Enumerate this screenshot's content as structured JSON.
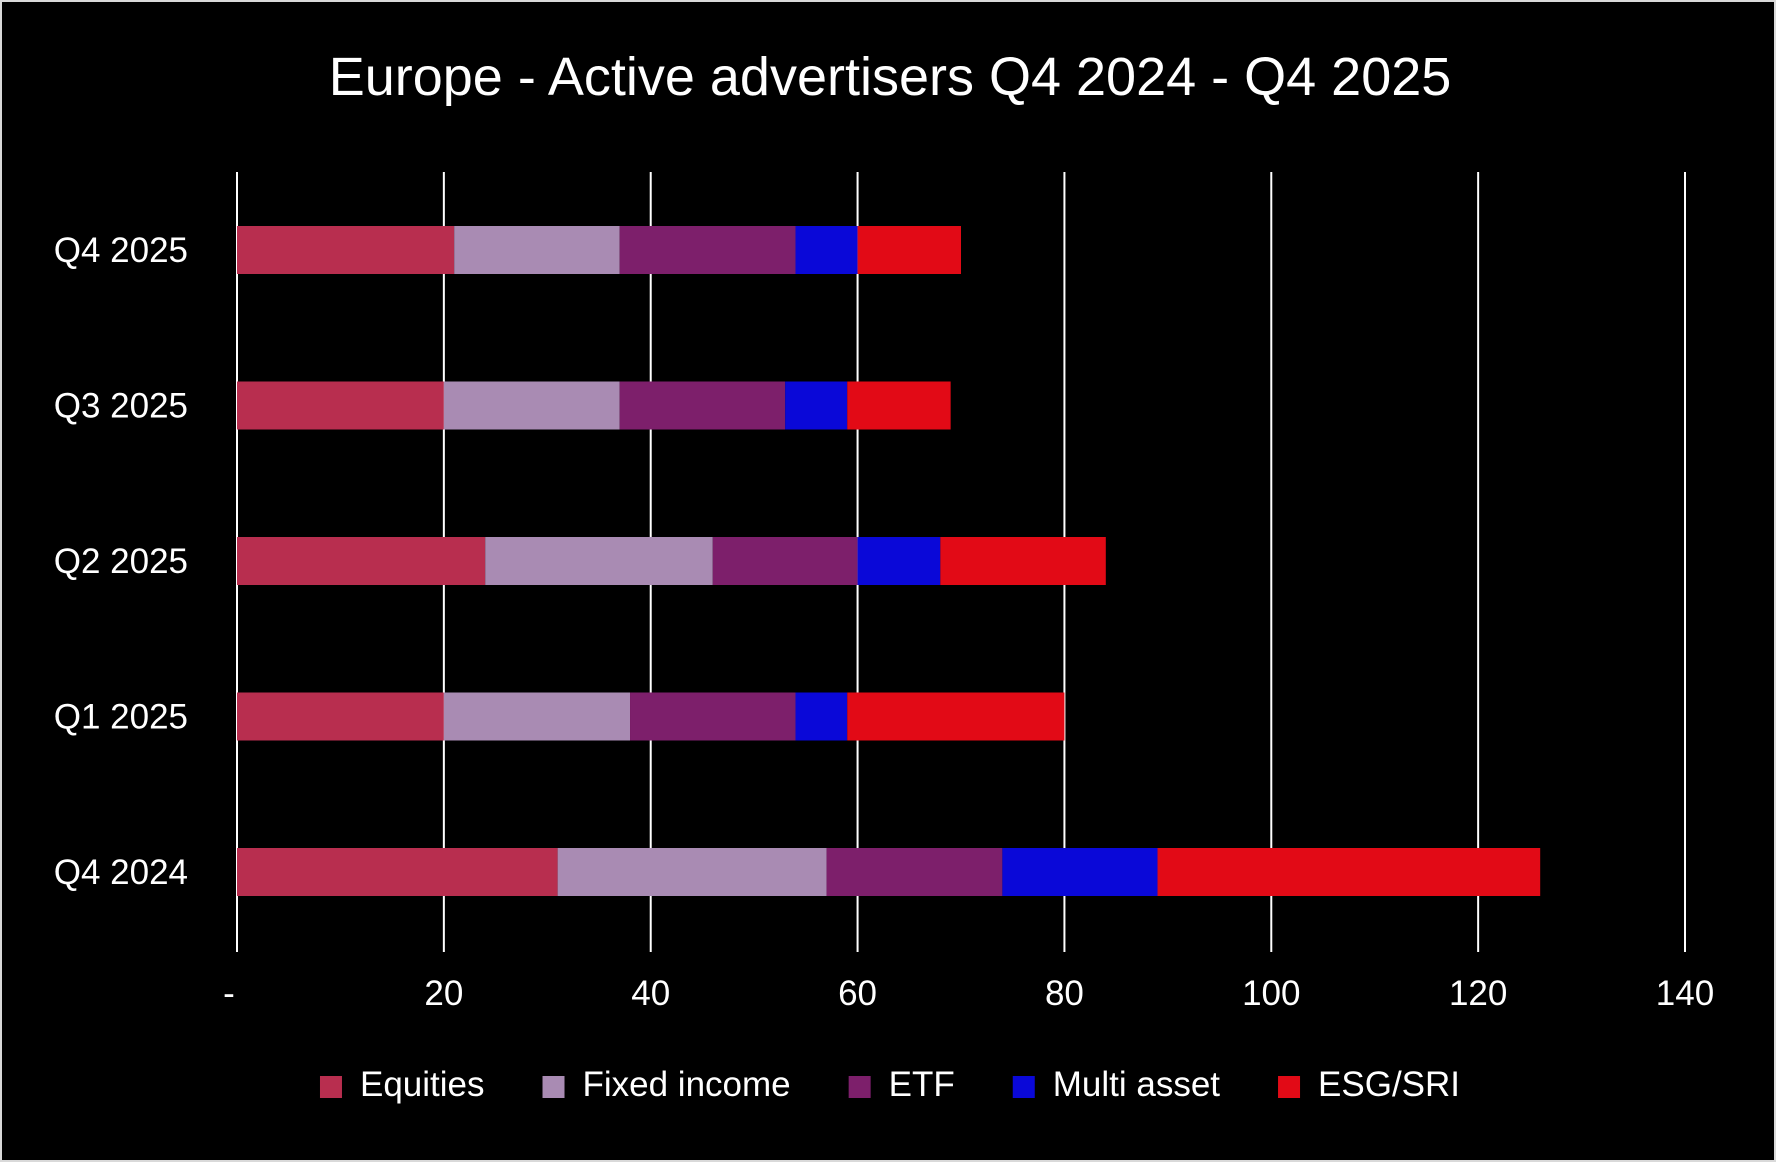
{
  "chart_data": {
    "type": "bar",
    "orientation": "horizontal",
    "stacked": true,
    "title": "Europe - Active advertisers Q4 2024 - Q4 2025",
    "categories": [
      "Q4 2025",
      "Q3 2025",
      "Q2 2025",
      "Q1 2025",
      "Q4 2024"
    ],
    "series": [
      {
        "name": "Equities",
        "color": "#b82e4f",
        "values": [
          21,
          20,
          24,
          20,
          31
        ]
      },
      {
        "name": "Fixed income",
        "color": "#a98bb3",
        "values": [
          16,
          17,
          22,
          18,
          26
        ]
      },
      {
        "name": "ETF",
        "color": "#7d1f6b",
        "values": [
          17,
          16,
          14,
          16,
          17
        ]
      },
      {
        "name": "Multi asset",
        "color": "#0a08d8",
        "values": [
          6,
          6,
          8,
          5,
          15
        ]
      },
      {
        "name": "ESG/SRI",
        "color": "#e20a16",
        "values": [
          10,
          10,
          16,
          21,
          37
        ]
      }
    ],
    "xlim": [
      0,
      140
    ],
    "xticks": [
      0,
      20,
      40,
      60,
      80,
      100,
      120,
      140
    ],
    "xtick_labels": [
      "-",
      "20",
      "40",
      "60",
      "80",
      "100",
      "120",
      "140"
    ],
    "grid": "vertical",
    "legend_position": "bottom",
    "background": "#000000",
    "text_color": "#ffffff"
  }
}
